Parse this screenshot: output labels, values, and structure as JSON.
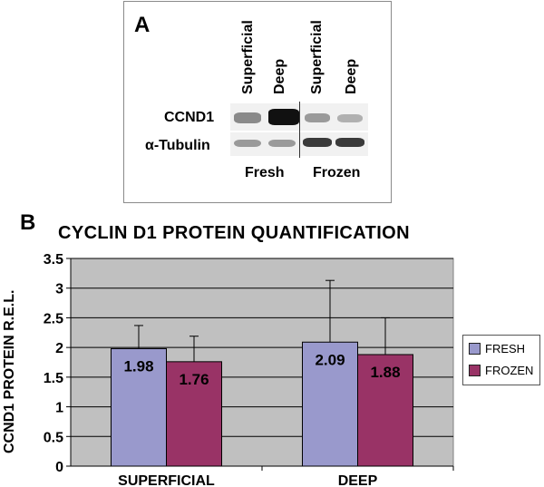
{
  "panel_a": {
    "letter": "A",
    "lanes": [
      "Superficial",
      "Deep",
      "Superficial",
      "Deep"
    ],
    "rows": [
      "CCND1",
      "α-Tubulin"
    ],
    "groups": [
      "Fresh",
      "Frozen"
    ]
  },
  "panel_b": {
    "letter": "B"
  },
  "chart_data": {
    "type": "bar",
    "title": "CYCLIN D1 PROTEIN QUANTIFICATION",
    "ylabel": "CCND1 PROTEIN R.E.L.",
    "xlabel": "",
    "categories": [
      "SUPERFICIAL",
      "DEEP"
    ],
    "series": [
      {
        "name": "FRESH",
        "color": "#9999cc",
        "values": [
          1.98,
          2.09
        ],
        "error": [
          0.39,
          1.04
        ]
      },
      {
        "name": "FROZEN",
        "color": "#993366",
        "values": [
          1.76,
          1.88
        ],
        "error": [
          0.43,
          0.62
        ]
      }
    ],
    "data_labels": [
      "1.98",
      "1.76",
      "2.09",
      "1.88"
    ],
    "ylim": [
      0,
      3.5
    ],
    "yticks": [
      "0",
      "0.5",
      "1",
      "1.5",
      "2",
      "2.5",
      "3",
      "3.5"
    ],
    "grid": true,
    "plot_background": "#c0c0c0",
    "legend_position": "right"
  }
}
